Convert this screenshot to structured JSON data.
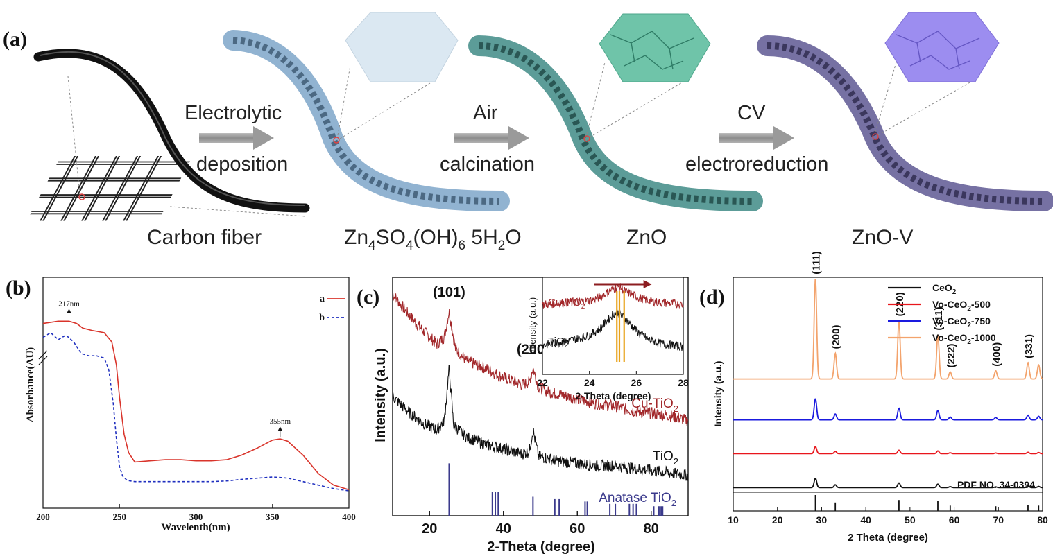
{
  "panel_a": {
    "label": "(a)",
    "steps": [
      {
        "line1": "Electrolytic",
        "line2": "deposition"
      },
      {
        "line1": "Air",
        "line2": "calcination"
      },
      {
        "line1": "CV",
        "line2": "electroreduction"
      }
    ],
    "materials": {
      "carbon": "Carbon fiber",
      "zhs_main": "Zn",
      "zhs_sub1": "4",
      "zhs_mid": "SO",
      "zhs_sub2": "4",
      "zhs_mid2": "(OH)",
      "zhs_sub3": "6",
      "zhs_mid3": " 5H",
      "zhs_sub4": "2",
      "zhs_end": "O",
      "zno": "ZnO",
      "znov": "ZnO-V"
    },
    "colors": {
      "fiber1": "#6f95b8",
      "fiber2": "#3d7d78",
      "fiber3": "#5a5488",
      "hex1": "#dbe8f2",
      "hex2": "#6fc4a9",
      "hex3": "#9c8df0",
      "arrow": "#a3a3a3"
    }
  },
  "chart_data": [
    {
      "panel": "(b)",
      "type": "line",
      "xlabel": "Wavelenth(nm)",
      "ylabel": "Absorbance(AU)",
      "xlim": [
        200,
        400
      ],
      "xticks": [
        "200",
        "250",
        "300",
        "350",
        "400"
      ],
      "legend": [
        {
          "name": "a",
          "color": "#d9342b",
          "style": "solid"
        },
        {
          "name": "b",
          "color": "#1f2fbf",
          "style": "dashed"
        }
      ],
      "annotations": [
        {
          "text": "217nm",
          "x": 217
        },
        {
          "text": "355nm",
          "x": 355
        }
      ],
      "series": [
        {
          "name": "a",
          "color": "#d9342b",
          "x": [
            200,
            210,
            217,
            222,
            226,
            232,
            240,
            245,
            248,
            250,
            253,
            256,
            260,
            270,
            280,
            290,
            300,
            310,
            320,
            330,
            340,
            350,
            355,
            360,
            370,
            380,
            390,
            400
          ],
          "y": [
            0.8,
            0.81,
            0.81,
            0.8,
            0.78,
            0.77,
            0.76,
            0.72,
            0.62,
            0.48,
            0.32,
            0.24,
            0.2,
            0.205,
            0.21,
            0.21,
            0.205,
            0.205,
            0.21,
            0.23,
            0.26,
            0.295,
            0.3,
            0.29,
            0.23,
            0.15,
            0.1,
            0.08
          ]
        },
        {
          "name": "b",
          "color": "#1f2fbf",
          "x": [
            200,
            205,
            210,
            215,
            220,
            225,
            230,
            235,
            240,
            243,
            246,
            248,
            250,
            252,
            255,
            260,
            270,
            280,
            290,
            300,
            310,
            320,
            330,
            340,
            350,
            355,
            360,
            370,
            380,
            390,
            400
          ],
          "y": [
            0.74,
            0.76,
            0.73,
            0.75,
            0.72,
            0.67,
            0.66,
            0.66,
            0.65,
            0.6,
            0.45,
            0.3,
            0.18,
            0.14,
            0.12,
            0.115,
            0.115,
            0.115,
            0.115,
            0.115,
            0.115,
            0.118,
            0.125,
            0.13,
            0.135,
            0.133,
            0.13,
            0.115,
            0.1,
            0.085,
            0.075
          ]
        }
      ]
    },
    {
      "panel": "(c)",
      "type": "line",
      "xlabel": "2-Theta (degree)",
      "ylabel": "Intensity (a.u.)",
      "xlim": [
        10,
        90
      ],
      "xticks": [
        "20",
        "40",
        "60",
        "80"
      ],
      "peak_labels": [
        {
          "text": "(101)",
          "x": 25.3
        },
        {
          "text": "(200)",
          "x": 48.0
        }
      ],
      "series": [
        {
          "name": "Cu-TiO",
          "sub": "2",
          "color": "#a2282b",
          "x": [
            10,
            14,
            18,
            22,
            24,
            25.3,
            27,
            30,
            35,
            40,
            45,
            47,
            48,
            49.5,
            52,
            55,
            60,
            65,
            70,
            75,
            80,
            85,
            90
          ],
          "y": [
            0.93,
            0.85,
            0.78,
            0.72,
            0.75,
            0.86,
            0.7,
            0.65,
            0.62,
            0.58,
            0.55,
            0.56,
            0.62,
            0.54,
            0.52,
            0.51,
            0.49,
            0.47,
            0.46,
            0.44,
            0.43,
            0.42,
            0.4
          ]
        },
        {
          "name": "TiO",
          "sub": "2",
          "color": "#111111",
          "x": [
            10,
            14,
            18,
            22,
            24,
            25.3,
            26.5,
            30,
            35,
            40,
            45,
            47,
            48,
            49.5,
            52,
            55,
            60,
            65,
            70,
            75,
            80,
            85,
            90
          ],
          "y": [
            0.5,
            0.44,
            0.39,
            0.36,
            0.4,
            0.62,
            0.38,
            0.33,
            0.3,
            0.28,
            0.26,
            0.27,
            0.36,
            0.25,
            0.24,
            0.23,
            0.22,
            0.21,
            0.21,
            0.2,
            0.19,
            0.18,
            0.17
          ]
        }
      ],
      "reference": {
        "name": "Anatase TiO",
        "sub": "2",
        "color": "#3b3a8c",
        "x": [
          25.3,
          37.0,
          37.8,
          38.6,
          48.0,
          53.9,
          55.1,
          62.1,
          62.7,
          68.8,
          70.3,
          74.1,
          75.1,
          76.0,
          80.7,
          82.1,
          82.7,
          83.1
        ],
        "h": [
          0.22,
          0.1,
          0.1,
          0.1,
          0.08,
          0.07,
          0.07,
          0.06,
          0.06,
          0.05,
          0.05,
          0.05,
          0.05,
          0.05,
          0.04,
          0.04,
          0.04,
          0.04
        ]
      },
      "inset": {
        "xlabel": "2-Theta (degree)",
        "ylabel": "Intensity (a.u.)",
        "xlim": [
          22,
          28
        ],
        "xticks": [
          "22",
          "24",
          "26",
          "28"
        ],
        "series": [
          {
            "name": "Cu-TiO",
            "sub": "2",
            "color": "#a2282b",
            "x": [
              22,
              23,
              24,
              24.5,
              25,
              25.3,
              25.5,
              26,
              26.5,
              27,
              28
            ],
            "y": [
              0.72,
              0.74,
              0.76,
              0.8,
              0.88,
              0.9,
              0.86,
              0.8,
              0.76,
              0.74,
              0.72
            ]
          },
          {
            "name": "TiO",
            "sub": "2",
            "color": "#111111",
            "x": [
              22,
              23,
              24,
              24.5,
              25,
              25.2,
              25.5,
              26,
              26.5,
              27,
              28
            ],
            "y": [
              0.3,
              0.34,
              0.4,
              0.48,
              0.62,
              0.64,
              0.58,
              0.45,
              0.36,
              0.32,
              0.28
            ]
          }
        ],
        "markers": [
          25.17,
          25.28,
          25.48
        ],
        "marker_color": "#e8a21a",
        "arrow_color": "#8c1d20",
        "arrow_x": [
          24.2,
          26.6
        ]
      }
    },
    {
      "panel": "(d)",
      "type": "line",
      "xlabel": "2 Theta (degree)",
      "ylabel": "Intensity (a.u.)",
      "xlim": [
        10,
        80
      ],
      "xticks": [
        "10",
        "20",
        "30",
        "40",
        "50",
        "60",
        "70",
        "80"
      ],
      "legend": [
        {
          "name": "CeO",
          "sub": "2",
          "tail": "",
          "color": "#111111"
        },
        {
          "name": "Vo-CeO",
          "sub": "2",
          "tail": "-500",
          "color": "#e8161c"
        },
        {
          "name": "Vo-CeO",
          "sub": "2",
          "tail": "-750",
          "color": "#1a1adf"
        },
        {
          "name": "Vo-CeO",
          "sub": "2",
          "tail": "-1000",
          "color": "#f3a36c"
        }
      ],
      "peaks": [
        28.6,
        33.1,
        47.5,
        56.3,
        59.1,
        69.4,
        76.7,
        79.1
      ],
      "peak_labels": [
        "(111)",
        "(200)",
        "(220)",
        "(311)",
        "(222)",
        "(400)",
        "(331)"
      ],
      "reference_label": "PDF NO. 34-0394",
      "reference_h": [
        1.0,
        0.4,
        0.6,
        0.5,
        0.15,
        0.1,
        0.2,
        0.15
      ],
      "series": [
        {
          "name": "CeO2",
          "color": "#111111",
          "baseline": 0.1,
          "heights": [
            0.04,
            0.012,
            0.02,
            0.015,
            0.004,
            0.003,
            0.008,
            0.005
          ]
        },
        {
          "name": "Vo-CeO2-500",
          "color": "#e8161c",
          "baseline": 0.245,
          "heights": [
            0.03,
            0.01,
            0.015,
            0.012,
            0.004,
            0.003,
            0.006,
            0.005
          ]
        },
        {
          "name": "Vo-CeO2-750",
          "color": "#1a1adf",
          "baseline": 0.39,
          "heights": [
            0.09,
            0.025,
            0.05,
            0.04,
            0.012,
            0.01,
            0.02,
            0.015
          ]
        },
        {
          "name": "Vo-CeO2-1000",
          "color": "#f3a36c",
          "baseline": 0.565,
          "heights": [
            0.43,
            0.11,
            0.25,
            0.19,
            0.03,
            0.035,
            0.07,
            0.06
          ]
        }
      ]
    }
  ]
}
